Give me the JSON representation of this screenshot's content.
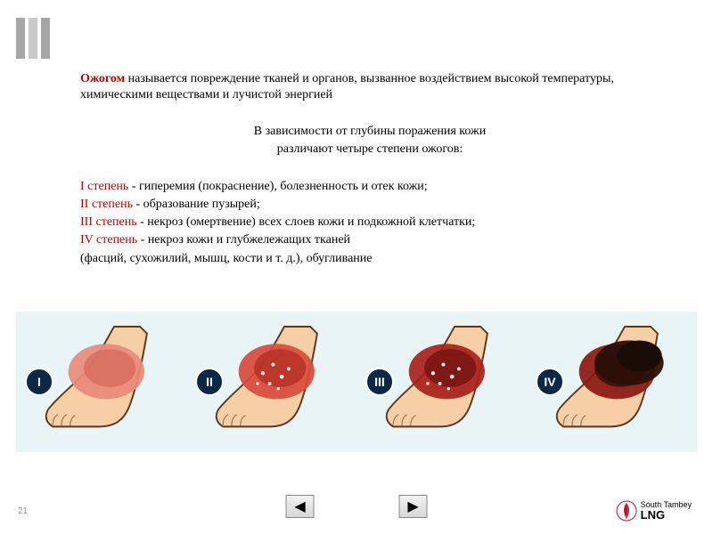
{
  "decor": {
    "bar_colors": [
      "#a6a6a6",
      "#c9c9c9",
      "#a6a6a6"
    ]
  },
  "definition": {
    "term": "Ожогом",
    "rest": " называется повреждение тканей и органов, вызванное воздействием высокой температуры, химическими веществами и лучистой энергией"
  },
  "subhead": {
    "line1": "В зависимости от глубины поражения кожи",
    "line2": "различают четыре степени ожогов:"
  },
  "degrees": [
    {
      "label": "I степень",
      "desc": " - гиперемия (покраснение), болезненность и отек кожи;"
    },
    {
      "label": "II степень",
      "desc": " - образование пузырей;"
    },
    {
      "label": "III степень",
      "desc": " - некроз (омертвение) всех слоев кожи и подкожной  клетчатки;"
    },
    {
      "label": "IV степень",
      "desc": " - некроз кожи и глубжележащих тканей"
    }
  ],
  "degrees_tail": "(фасций,  сухожилий,  мышц, кости и т. д.), обугливание",
  "illustration": {
    "background": "#e8f4f6",
    "badge_bg": "#0b2947",
    "badge_fg": "#ffffff",
    "skin_fill": "#f7cfa6",
    "skin_stroke": "#5a3a1f",
    "panels": [
      {
        "label": "I",
        "burn_color": "#e88a7a",
        "burn_dark": "#d46a5a",
        "blisters": false,
        "charred": false
      },
      {
        "label": "II",
        "burn_color": "#d84a3c",
        "burn_dark": "#b02e22",
        "blisters": true,
        "charred": false
      },
      {
        "label": "III",
        "burn_color": "#a8201a",
        "burn_dark": "#6e120f",
        "blisters": true,
        "charred": false
      },
      {
        "label": "IV",
        "burn_color": "#8a1810",
        "burn_dark": "#2b1008",
        "blisters": false,
        "charred": true
      }
    ]
  },
  "nav": {
    "prev": "◀",
    "next": "▶"
  },
  "page_number": "21",
  "logo": {
    "top": "South Tambey",
    "bottom": "LNG",
    "mark_color": "#c8102e"
  },
  "colors": {
    "term_red": "#c00000"
  }
}
